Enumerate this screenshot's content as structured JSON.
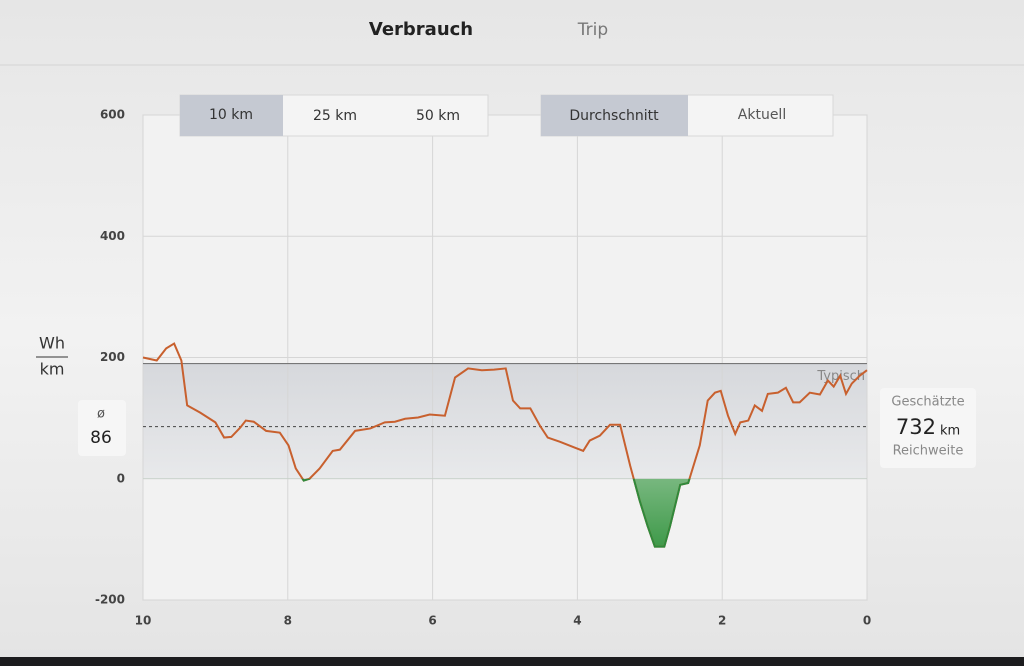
{
  "header": {
    "tabs": [
      "Verbrauch",
      "Trip"
    ]
  },
  "chart_data": {
    "type": "line",
    "y_label_top": "Wh",
    "y_label_bottom": "km",
    "xlim": [
      10,
      0
    ],
    "ylim": [
      -200,
      600
    ],
    "xticks": [
      10,
      8,
      6,
      4,
      2,
      0
    ],
    "yticks": [
      -200,
      0,
      200,
      400,
      600
    ],
    "grid": true,
    "x": [
      10.0,
      9.81,
      9.68,
      9.57,
      9.47,
      9.39,
      9.21,
      9.0,
      8.88,
      8.78,
      8.66,
      8.58,
      8.47,
      8.3,
      8.11,
      7.99,
      7.89,
      7.78,
      7.7,
      7.56,
      7.38,
      7.28,
      7.07,
      6.86,
      6.66,
      6.52,
      6.38,
      6.2,
      6.04,
      5.83,
      5.69,
      5.51,
      5.32,
      5.15,
      4.99,
      4.89,
      4.79,
      4.65,
      4.52,
      4.41,
      4.24,
      4.03,
      3.92,
      3.83,
      3.69,
      3.55,
      3.41,
      3.27,
      3.14,
      3.03,
      2.93,
      2.8,
      2.72,
      2.58,
      2.47,
      2.31,
      2.2,
      2.1,
      2.02,
      1.92,
      1.82,
      1.75,
      1.64,
      1.55,
      1.45,
      1.37,
      1.23,
      1.12,
      1.02,
      0.93,
      0.79,
      0.65,
      0.54,
      0.46,
      0.37,
      0.29,
      0.21,
      0.1,
      0.0
    ],
    "series": [
      {
        "color": "#c8602e",
        "values": [
          200,
          195,
          215,
          223,
          195,
          121,
          109,
          93,
          68,
          69,
          84,
          96,
          94,
          79,
          76,
          55,
          17,
          -3,
          0,
          17,
          46,
          48,
          79,
          83,
          93,
          94,
          99,
          101,
          106,
          104,
          167,
          182,
          179,
          180,
          182,
          129,
          116,
          116,
          88,
          68,
          61,
          51,
          46,
          63,
          71,
          89,
          89,
          21,
          -36,
          -78,
          -112,
          -112,
          -78,
          -10,
          -7,
          55,
          129,
          142,
          145,
          104,
          74,
          93,
          96,
          121,
          112,
          140,
          142,
          150,
          126,
          126,
          142,
          139,
          162,
          152,
          170,
          140,
          157,
          170,
          179
        ]
      }
    ],
    "negative_color": "#2f8a3c",
    "typical": 190,
    "typical_label": "Typisch",
    "average_symbol": "ø",
    "average": 86,
    "range_buttons": [
      "10 km",
      "25 km",
      "50 km"
    ],
    "mode_buttons": [
      "Durchschnitt",
      "Aktuell"
    ],
    "estimate": {
      "label_top": "Geschätzte",
      "value": 732,
      "unit": "km",
      "label_bottom": "Reichweite"
    }
  }
}
